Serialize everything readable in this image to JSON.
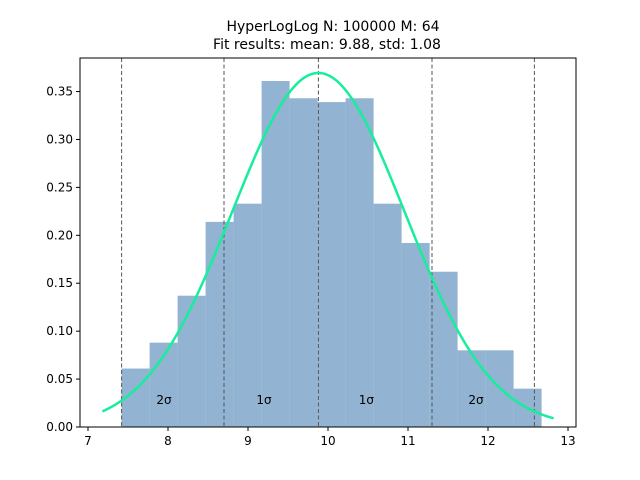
{
  "chart_data": {
    "type": "bar",
    "title_line1": "HyperLogLog N: 100000 M: 64",
    "title_line2": "Fit results: mean: 9.88,  std: 1.08",
    "xlim": [
      6.9,
      13.1
    ],
    "ylim": [
      0,
      0.385
    ],
    "xticks": [
      7,
      8,
      9,
      10,
      11,
      12,
      13
    ],
    "yticks": [
      0.0,
      0.05,
      0.1,
      0.15,
      0.2,
      0.25,
      0.3,
      0.35
    ],
    "histogram": {
      "color": "#92b3d2",
      "bins": [
        {
          "x0": 7.42,
          "x1": 7.77,
          "value": 0.061
        },
        {
          "x0": 7.77,
          "x1": 8.12,
          "value": 0.088
        },
        {
          "x0": 8.12,
          "x1": 8.47,
          "value": 0.137
        },
        {
          "x0": 8.47,
          "x1": 8.82,
          "value": 0.214
        },
        {
          "x0": 8.82,
          "x1": 9.17,
          "value": 0.233
        },
        {
          "x0": 9.17,
          "x1": 9.52,
          "value": 0.361
        },
        {
          "x0": 9.52,
          "x1": 9.87,
          "value": 0.343
        },
        {
          "x0": 9.87,
          "x1": 10.22,
          "value": 0.339
        },
        {
          "x0": 10.22,
          "x1": 10.57,
          "value": 0.343
        },
        {
          "x0": 10.57,
          "x1": 10.92,
          "value": 0.233
        },
        {
          "x0": 10.92,
          "x1": 11.27,
          "value": 0.192
        },
        {
          "x0": 11.27,
          "x1": 11.62,
          "value": 0.162
        },
        {
          "x0": 11.62,
          "x1": 11.97,
          "value": 0.08
        },
        {
          "x0": 11.97,
          "x1": 12.32,
          "value": 0.08
        },
        {
          "x0": 12.32,
          "x1": 12.67,
          "value": 0.04
        }
      ]
    },
    "fit": {
      "mean": 9.88,
      "std": 1.08,
      "x_range": [
        7.18,
        12.82
      ],
      "color": "#16ee9c"
    },
    "sigma_lines": [
      7.42,
      8.7,
      9.88,
      11.3,
      12.58
    ],
    "sigma_labels": [
      {
        "x": 7.95,
        "text": "2σ"
      },
      {
        "x": 9.2,
        "text": "1σ"
      },
      {
        "x": 10.48,
        "text": "1σ"
      },
      {
        "x": 11.85,
        "text": "2σ"
      }
    ],
    "sigma_label_y": 0.028
  }
}
